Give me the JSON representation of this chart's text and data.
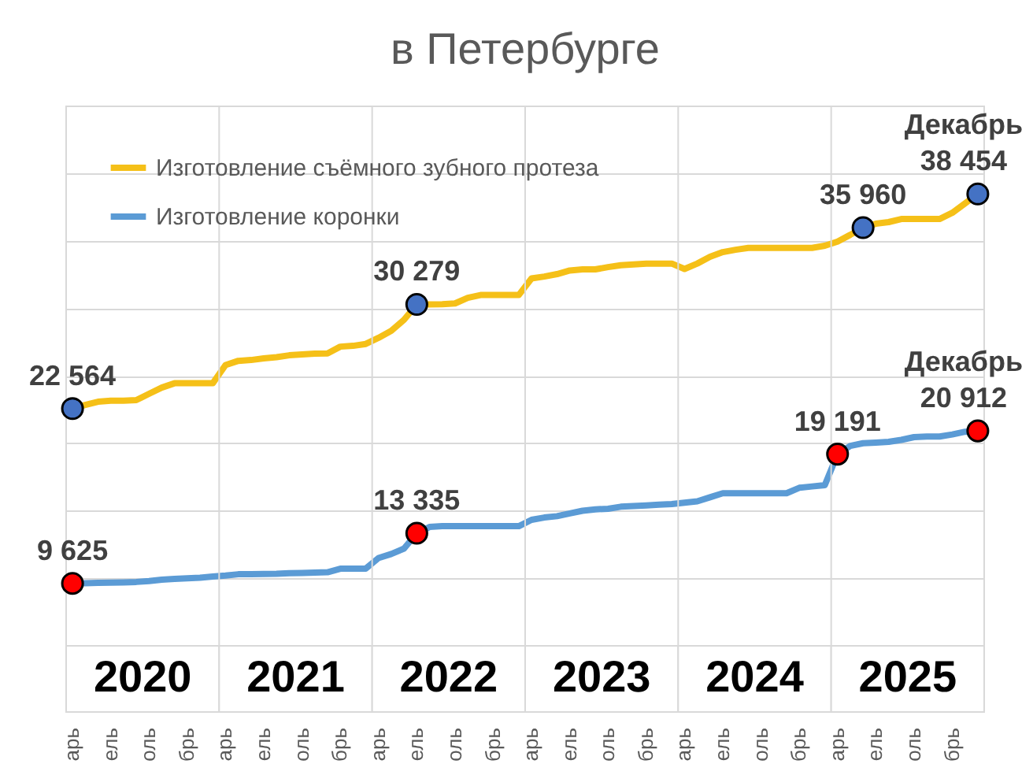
{
  "chart_data": {
    "type": "line",
    "title": "в Петербурге",
    "categories": [
      "арь",
      null,
      null,
      "ель",
      null,
      null,
      "оль",
      null,
      null,
      "брь",
      null,
      null,
      "арь",
      null,
      null,
      "ель",
      null,
      null,
      "оль",
      null,
      null,
      "брь",
      null,
      null,
      "арь",
      null,
      null,
      "ель",
      null,
      null,
      "оль",
      null,
      null,
      "брь",
      null,
      null,
      "арь",
      null,
      null,
      "ель",
      null,
      null,
      "оль",
      null,
      null,
      "брь",
      null,
      null,
      "арь",
      null,
      null,
      "ель",
      null,
      null,
      "оль",
      null,
      null,
      "брь",
      null,
      null,
      "арь",
      null,
      null,
      "ель",
      null,
      null,
      "оль",
      null,
      null,
      "брь",
      null,
      null
    ],
    "series": [
      {
        "name": "Изготовление съёмного зубного протеза",
        "color": "#f5c018",
        "values": [
          22564,
          22840,
          23070,
          23150,
          23150,
          23190,
          23660,
          24120,
          24440,
          24440,
          24440,
          24440,
          25790,
          26100,
          26160,
          26280,
          26370,
          26510,
          26570,
          26630,
          26650,
          27150,
          27210,
          27350,
          27800,
          28320,
          29140,
          30279,
          30280,
          30290,
          30350,
          30770,
          30970,
          30970,
          30970,
          30970,
          32200,
          32340,
          32520,
          32790,
          32870,
          32870,
          33040,
          33180,
          33240,
          33300,
          33300,
          33300,
          32900,
          33300,
          33800,
          34150,
          34320,
          34460,
          34460,
          34460,
          34460,
          34460,
          34460,
          34620,
          34930,
          35430,
          35960,
          36250,
          36370,
          36600,
          36600,
          36600,
          36600,
          37060,
          37760,
          38454
        ],
        "value_labels": [
          "22 564",
          null,
          null,
          null,
          null,
          null,
          null,
          null,
          null,
          null,
          null,
          null,
          null,
          null,
          null,
          null,
          null,
          null,
          null,
          null,
          null,
          null,
          null,
          null,
          null,
          null,
          null,
          "30 279",
          null,
          null,
          null,
          null,
          null,
          null,
          null,
          null,
          null,
          null,
          null,
          null,
          null,
          null,
          null,
          null,
          null,
          null,
          null,
          null,
          null,
          null,
          null,
          null,
          null,
          null,
          null,
          null,
          null,
          null,
          null,
          null,
          null,
          null,
          "35 960",
          null,
          null,
          null,
          null,
          null,
          null,
          null,
          null,
          "Декабрь\n38 454"
        ],
        "colors": [
          "#4472c4",
          null,
          null,
          null,
          null,
          null,
          null,
          null,
          null,
          null,
          null,
          null,
          null,
          null,
          null,
          null,
          null,
          null,
          null,
          null,
          null,
          null,
          null,
          null,
          null,
          null,
          null,
          "#4472c4",
          null,
          null,
          null,
          null,
          null,
          null,
          null,
          null,
          null,
          null,
          null,
          null,
          null,
          null,
          null,
          null,
          null,
          null,
          null,
          null,
          null,
          null,
          null,
          null,
          null,
          null,
          null,
          null,
          null,
          null,
          null,
          null,
          null,
          null,
          "#4472c4",
          null,
          null,
          null,
          null,
          null,
          null,
          null,
          null,
          "#4472c4"
        ]
      },
      {
        "name": "Изготовление коронки",
        "color": "#5b9bd5",
        "values": [
          9625,
          9640,
          9660,
          9680,
          9700,
          9730,
          9800,
          9900,
          9950,
          10000,
          10050,
          10130,
          10200,
          10300,
          10300,
          10320,
          10330,
          10380,
          10400,
          10420,
          10450,
          10710,
          10720,
          10720,
          11500,
          11800,
          12200,
          13335,
          13800,
          13860,
          13860,
          13860,
          13860,
          13860,
          13860,
          13860,
          14330,
          14500,
          14600,
          14800,
          15000,
          15100,
          15150,
          15300,
          15350,
          15400,
          15450,
          15500,
          15600,
          15700,
          16000,
          16300,
          16300,
          16300,
          16300,
          16300,
          16300,
          16700,
          16800,
          16900,
          19191,
          19800,
          20000,
          20050,
          20100,
          20250,
          20450,
          20500,
          20500,
          20650,
          20850,
          20912
        ],
        "value_labels": [
          "9 625",
          null,
          null,
          null,
          null,
          null,
          null,
          null,
          null,
          null,
          null,
          null,
          null,
          null,
          null,
          null,
          null,
          null,
          null,
          null,
          null,
          null,
          null,
          null,
          null,
          null,
          null,
          "13 335",
          null,
          null,
          null,
          null,
          null,
          null,
          null,
          null,
          null,
          null,
          null,
          null,
          null,
          null,
          null,
          null,
          null,
          null,
          null,
          null,
          null,
          null,
          null,
          null,
          null,
          null,
          null,
          null,
          null,
          null,
          null,
          null,
          "19 191",
          null,
          null,
          null,
          null,
          null,
          null,
          null,
          null,
          null,
          null,
          "Декабрь\n20 912"
        ],
        "colors": [
          "#ff0000",
          null,
          null,
          null,
          null,
          null,
          null,
          null,
          null,
          null,
          null,
          null,
          null,
          null,
          null,
          null,
          null,
          null,
          null,
          null,
          null,
          null,
          null,
          null,
          null,
          null,
          null,
          "#ff0000",
          null,
          null,
          null,
          null,
          null,
          null,
          null,
          null,
          null,
          null,
          null,
          null,
          null,
          null,
          null,
          null,
          null,
          null,
          null,
          null,
          null,
          null,
          null,
          null,
          null,
          null,
          null,
          null,
          null,
          null,
          null,
          null,
          "#ff0000",
          null,
          null,
          null,
          null,
          null,
          null,
          null,
          null,
          null,
          null,
          "#ff0000"
        ]
      }
    ],
    "ylim": [
      5000,
      45000
    ],
    "tick_labels": "x",
    "grid": true,
    "legend": "top left",
    "line_style": "solid",
    "annotations": [
      "2020",
      "2021",
      "2022",
      "2023",
      "2024",
      "2025"
    ]
  }
}
